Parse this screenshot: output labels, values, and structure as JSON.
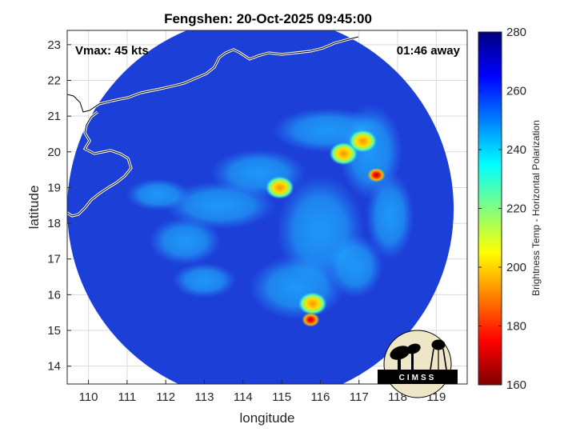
{
  "title": "Fengshen: 20-Oct-2025 09:45:00",
  "xlabel": "longitude",
  "ylabel": "latitude",
  "vmax_text": "Vmax: 45 kts",
  "time_away_text": "01:46 away",
  "logo_text": "CIMSS",
  "x_ticks": [
    "110",
    "111",
    "112",
    "113",
    "114",
    "115",
    "116",
    "117",
    "118",
    "119"
  ],
  "y_ticks": [
    "23",
    "22",
    "21",
    "20",
    "19",
    "18",
    "17",
    "16",
    "15",
    "14"
  ],
  "colorbar": {
    "label": "Brightness Temp - Horizontal Polarization",
    "ticks": [
      "280",
      "260",
      "240",
      "220",
      "200",
      "180",
      "160"
    ],
    "range": [
      160,
      280
    ],
    "colormap": "jet"
  },
  "map": {
    "lon_range": [
      109.45,
      119.8
    ],
    "lat_range": [
      13.5,
      23.4
    ],
    "swath_center": [
      114.45,
      18.4
    ],
    "swath_radius_deg": 5.0,
    "background_temp": 262,
    "cold_spots": [
      {
        "lon": 116.6,
        "lat": 19.95,
        "temp": 200
      },
      {
        "lon": 117.45,
        "lat": 19.35,
        "temp": 180
      },
      {
        "lon": 117.1,
        "lat": 20.3,
        "temp": 208
      },
      {
        "lon": 114.95,
        "lat": 19.0,
        "temp": 205
      },
      {
        "lon": 115.8,
        "lat": 15.75,
        "temp": 200
      },
      {
        "lon": 115.75,
        "lat": 15.3,
        "temp": 182
      }
    ]
  }
}
